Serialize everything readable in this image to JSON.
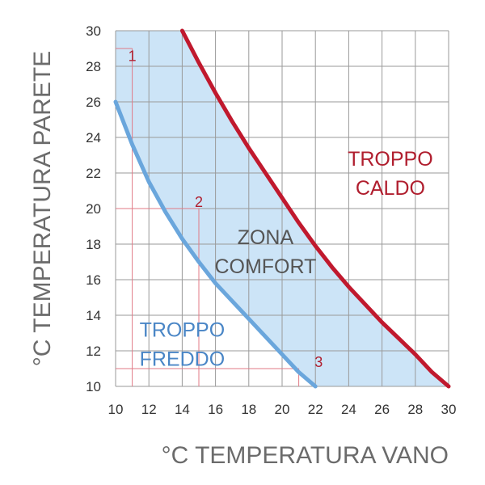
{
  "chart_data": {
    "type": "line",
    "xlabel": "°C TEMPERATURA VANO",
    "ylabel": "°C TEMPERATURA PARETE",
    "xlim": [
      10,
      30
    ],
    "ylim": [
      10,
      30
    ],
    "x_ticks": [
      "10",
      "12",
      "14",
      "16",
      "18",
      "20",
      "22",
      "24",
      "26",
      "28",
      "30"
    ],
    "y_ticks": [
      "10",
      "12",
      "14",
      "16",
      "18",
      "20",
      "22",
      "24",
      "26",
      "28",
      "30"
    ],
    "grid": true,
    "series": [
      {
        "color": "#c0192e",
        "x": [
          14,
          15,
          16,
          17,
          18,
          19,
          20,
          21,
          22,
          23,
          24,
          25,
          26,
          27,
          28,
          29,
          30
        ],
        "y": [
          30,
          28.2,
          26.5,
          24.9,
          23.4,
          22.0,
          20.6,
          19.2,
          17.9,
          16.7,
          15.6,
          14.6,
          13.6,
          12.7,
          11.8,
          10.8,
          10
        ]
      },
      {
        "color": "#6aa6dc",
        "x": [
          10,
          11,
          12,
          13,
          14,
          15,
          16,
          17,
          18,
          19,
          20,
          21,
          22
        ],
        "y": [
          26,
          23.6,
          21.5,
          19.8,
          18.3,
          17.0,
          15.8,
          14.8,
          13.8,
          12.8,
          11.8,
          10.8,
          10
        ]
      }
    ],
    "comfort_zone_color": "#cce4f7",
    "zones": [
      {
        "lines": [
          "TROPPO",
          "CALDO"
        ],
        "color": "#b01e2e",
        "x": 26.5,
        "y": 22.4
      },
      {
        "lines": [
          "ZONA",
          "COMFORT"
        ],
        "color": "#555555",
        "x": 19.0,
        "y": 18.0
      },
      {
        "lines": [
          "TROPPO",
          "FREDDO"
        ],
        "color": "#4a86c6",
        "x": 14.0,
        "y": 12.8
      }
    ],
    "reference_points": [
      {
        "label": "1",
        "x": 11,
        "y": 29,
        "label_x": 11,
        "label_y": 28.3
      },
      {
        "label": "2",
        "x": 15,
        "y": 20,
        "label_x": 15,
        "label_y": 20.1
      },
      {
        "label": "3",
        "x": 21,
        "y": 11,
        "label_x": 22.2,
        "label_y": 11.1
      }
    ]
  }
}
